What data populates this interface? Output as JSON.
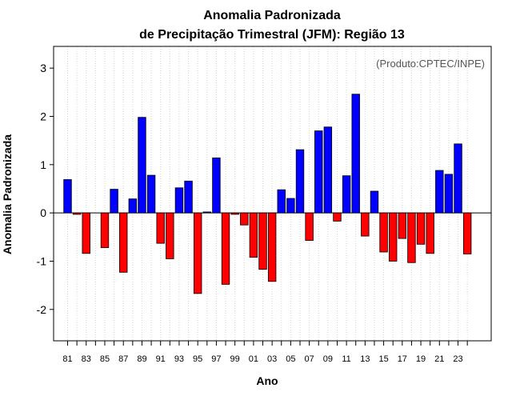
{
  "chart_data": {
    "type": "bar",
    "title_line1": "Anomalia Padronizada",
    "title_line2": "de Precipitação Trimestral (JFM): Região 13",
    "annotation": "(Produto:CPTEC/INPE)",
    "xlabel": "Ano",
    "ylabel": "Anomalia Padronizada",
    "ylim": [
      -2.65,
      3.45
    ],
    "yticks": [
      -2,
      -1,
      0,
      1,
      2,
      3
    ],
    "ytick_labels": [
      "-2",
      "-1",
      "0",
      "1",
      "2",
      "3"
    ],
    "xtick_labels": [
      "81",
      "83",
      "85",
      "87",
      "89",
      "91",
      "93",
      "95",
      "97",
      "99",
      "01",
      "03",
      "05",
      "07",
      "09",
      "11",
      "13",
      "15",
      "17",
      "19",
      "21",
      "23"
    ],
    "categories": [
      "1981",
      "1982",
      "1983",
      "1984",
      "1985",
      "1986",
      "1987",
      "1988",
      "1989",
      "1990",
      "1991",
      "1992",
      "1993",
      "1994",
      "1995",
      "1996",
      "1997",
      "1998",
      "1999",
      "2000",
      "2001",
      "2002",
      "2003",
      "2004",
      "2005",
      "2006",
      "2007",
      "2008",
      "2009",
      "2010",
      "2011",
      "2012",
      "2013",
      "2014",
      "2015",
      "2016",
      "2017",
      "2018",
      "2019",
      "2020",
      "2021",
      "2022",
      "2023",
      "2024"
    ],
    "values": [
      0.69,
      -0.03,
      -0.84,
      0.0,
      -0.72,
      0.49,
      -1.23,
      0.29,
      1.98,
      0.78,
      -0.63,
      -0.95,
      0.52,
      0.66,
      -1.67,
      0.02,
      1.14,
      -1.48,
      -0.03,
      -0.25,
      -0.92,
      -1.17,
      -1.42,
      0.48,
      0.3,
      1.31,
      -0.57,
      1.7,
      1.78,
      -0.17,
      0.77,
      2.46,
      -0.48,
      0.45,
      -0.81,
      -1.0,
      -0.53,
      -1.03,
      -0.65,
      -0.84,
      0.88,
      0.8,
      1.43,
      -0.85
    ],
    "positive_color": "#0000ff",
    "negative_color": "#ff0000",
    "grid": true
  }
}
